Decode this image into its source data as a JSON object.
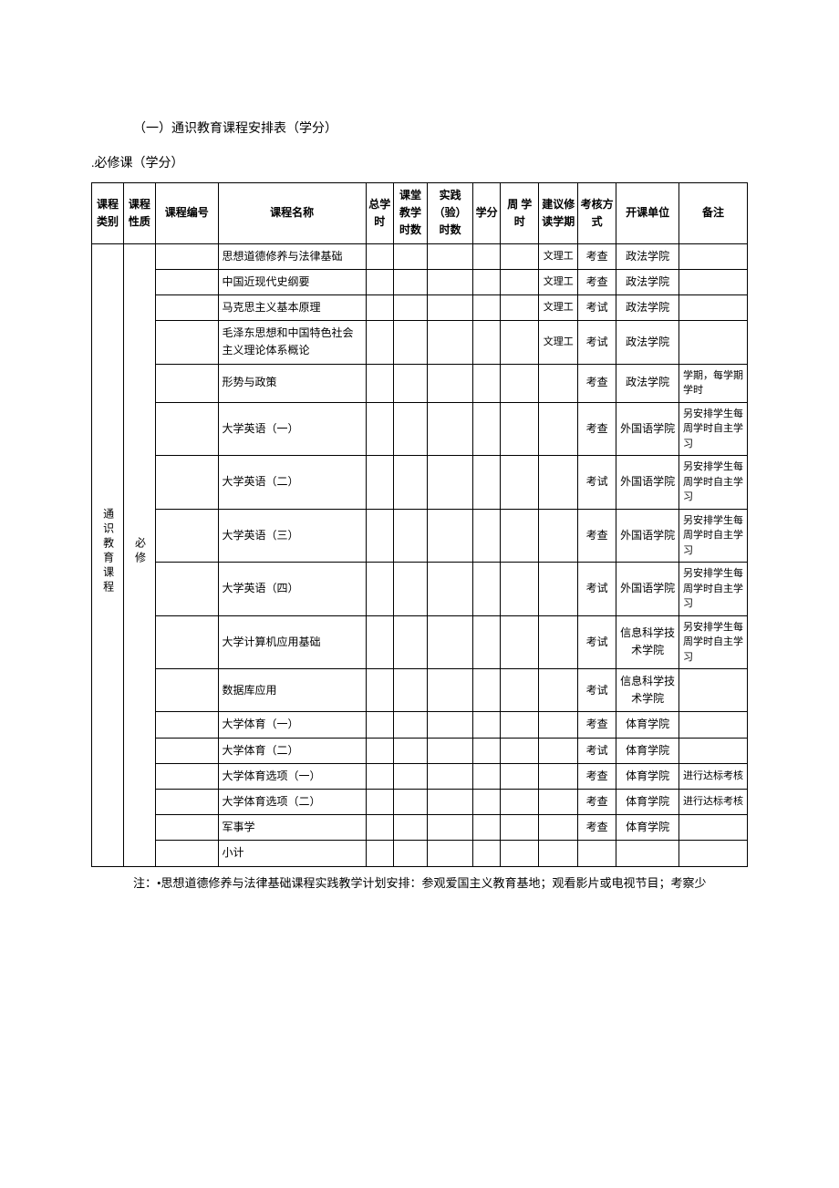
{
  "heading1": "（一）通识教育课程安排表（学分）",
  "heading2": ".必修课（学分）",
  "headers": {
    "category": "课程类别",
    "nature": "课程性质",
    "code": "课程编号",
    "name": "课程名称",
    "total_hours": "总学时",
    "class_hours": "课堂教学时数",
    "practice_hours": "实践（验）时数",
    "credits": "学分",
    "week_hours": "周 学时",
    "semester": "建议修读学期",
    "exam": "考核方式",
    "dept": "开课单位",
    "note": "备注"
  },
  "category_label": "通识教育课程",
  "nature_label": "必修",
  "rows": [
    {
      "name": "思想道德修养与法律基础",
      "sem": "文理工",
      "exam": "考查",
      "dept": "政法学院",
      "note": ""
    },
    {
      "name": "中国近现代史纲要",
      "sem": "文理工",
      "exam": "考查",
      "dept": "政法学院",
      "note": ""
    },
    {
      "name": "马克思主义基本原理",
      "sem": "文理工",
      "exam": "考试",
      "dept": "政法学院",
      "note": ""
    },
    {
      "name": "毛泽东思想和中国特色社会主义理论体系概论",
      "sem": "文理工",
      "exam": "考试",
      "dept": "政法学院",
      "note": ""
    },
    {
      "name": "形势与政策",
      "sem": "",
      "exam": "考查",
      "dept": "政法学院",
      "note": "学期，每学期学时"
    },
    {
      "name": "大学英语（一）",
      "sem": "",
      "exam": "考查",
      "dept": "外国语学院",
      "note": "另安排学生每周学时自主学习"
    },
    {
      "name": "大学英语（二）",
      "sem": "",
      "exam": "考试",
      "dept": "外国语学院",
      "note": "另安排学生每周学时自主学习"
    },
    {
      "name": "大学英语（三）",
      "sem": "",
      "exam": "考查",
      "dept": "外国语学院",
      "note": "另安排学生每周学时自主学习"
    },
    {
      "name": "大学英语（四）",
      "sem": "",
      "exam": "考试",
      "dept": "外国语学院",
      "note": "另安排学生每周学时自主学习"
    },
    {
      "name": "大学计算机应用基础",
      "sem": "",
      "exam": "考试",
      "dept": "信息科学技术学院",
      "note": "另安排学生每周学时自主学习"
    },
    {
      "name": "数据库应用",
      "sem": "",
      "exam": "考试",
      "dept": "信息科学技术学院",
      "note": ""
    },
    {
      "name": "大学体育（一）",
      "sem": "",
      "exam": "考查",
      "dept": "体育学院",
      "note": ""
    },
    {
      "name": "大学体育（二）",
      "sem": "",
      "exam": "考试",
      "dept": "体育学院",
      "note": ""
    },
    {
      "name": "大学体育选项（一）",
      "sem": "",
      "exam": "考查",
      "dept": "体育学院",
      "note": "进行达标考核"
    },
    {
      "name": "大学体育选项（二）",
      "sem": "",
      "exam": "考查",
      "dept": "体育学院",
      "note": "进行达标考核"
    },
    {
      "name": "军事学",
      "sem": "",
      "exam": "考查",
      "dept": "体育学院",
      "note": ""
    },
    {
      "name": "小计",
      "sem": "",
      "exam": "",
      "dept": "",
      "note": ""
    }
  ],
  "footnote": "注：•思想道德修养与法律基础课程实践教学计划安排：参观爱国主义教育基地；观看影片或电视节目；考察少"
}
